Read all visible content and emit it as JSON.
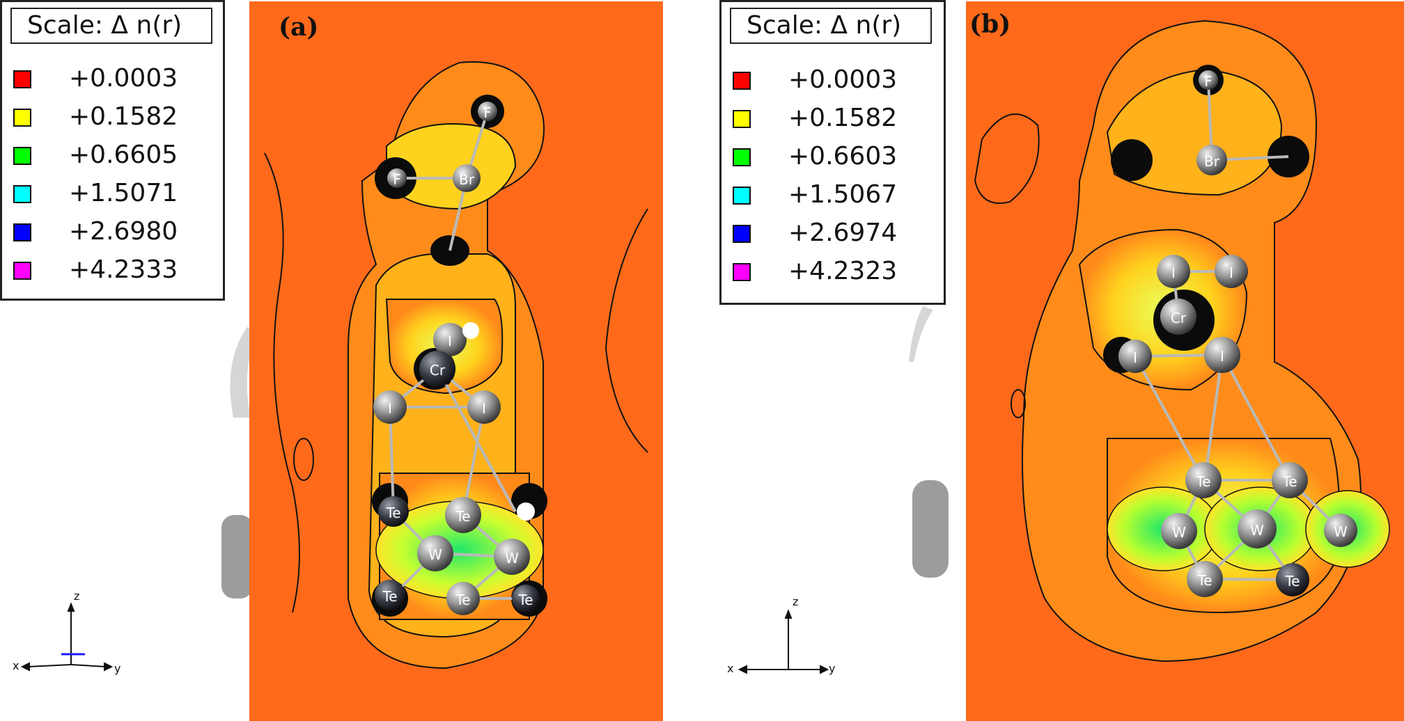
{
  "panels": [
    {
      "id": "a",
      "label": "(a)",
      "legend": {
        "title": "Scale:   Δ n(r)",
        "items": [
          {
            "color": "#ff0000",
            "value": "+0.0003"
          },
          {
            "color": "#ffff00",
            "value": "+0.1582"
          },
          {
            "color": "#00ff00",
            "value": "+0.6605"
          },
          {
            "color": "#00ffff",
            "value": "+1.5071"
          },
          {
            "color": "#0000ff",
            "value": "+2.6980"
          },
          {
            "color": "#ff00ff",
            "value": "+4.2333"
          }
        ]
      },
      "axes": {
        "z": "z",
        "x": "x",
        "y": "y"
      },
      "atoms": [
        "F",
        "Br",
        "F",
        "I",
        "Cr",
        "I",
        "I",
        "Te",
        "Te",
        "W",
        "W",
        "Te",
        "Te",
        "Te"
      ]
    },
    {
      "id": "b",
      "label": "(b)",
      "legend": {
        "title": "Scale:   Δ n(r)",
        "items": [
          {
            "color": "#ff0000",
            "value": "+0.0003"
          },
          {
            "color": "#ffff00",
            "value": "+0.1582"
          },
          {
            "color": "#00ff00",
            "value": "+0.6603"
          },
          {
            "color": "#00ffff",
            "value": "+1.5067"
          },
          {
            "color": "#0000ff",
            "value": "+2.6974"
          },
          {
            "color": "#ff00ff",
            "value": "+4.2323"
          }
        ]
      },
      "axes": {
        "z": "z",
        "x": "x",
        "y": "y"
      },
      "atoms": [
        "F",
        "Br",
        "I",
        "I",
        "Cr",
        "I",
        "I",
        "Te",
        "Te",
        "W",
        "W",
        "W",
        "Te",
        "Te"
      ]
    }
  ],
  "colors": {
    "background": "#ff6a1a",
    "contour": "#111111",
    "atom": "#8a8a8a"
  }
}
